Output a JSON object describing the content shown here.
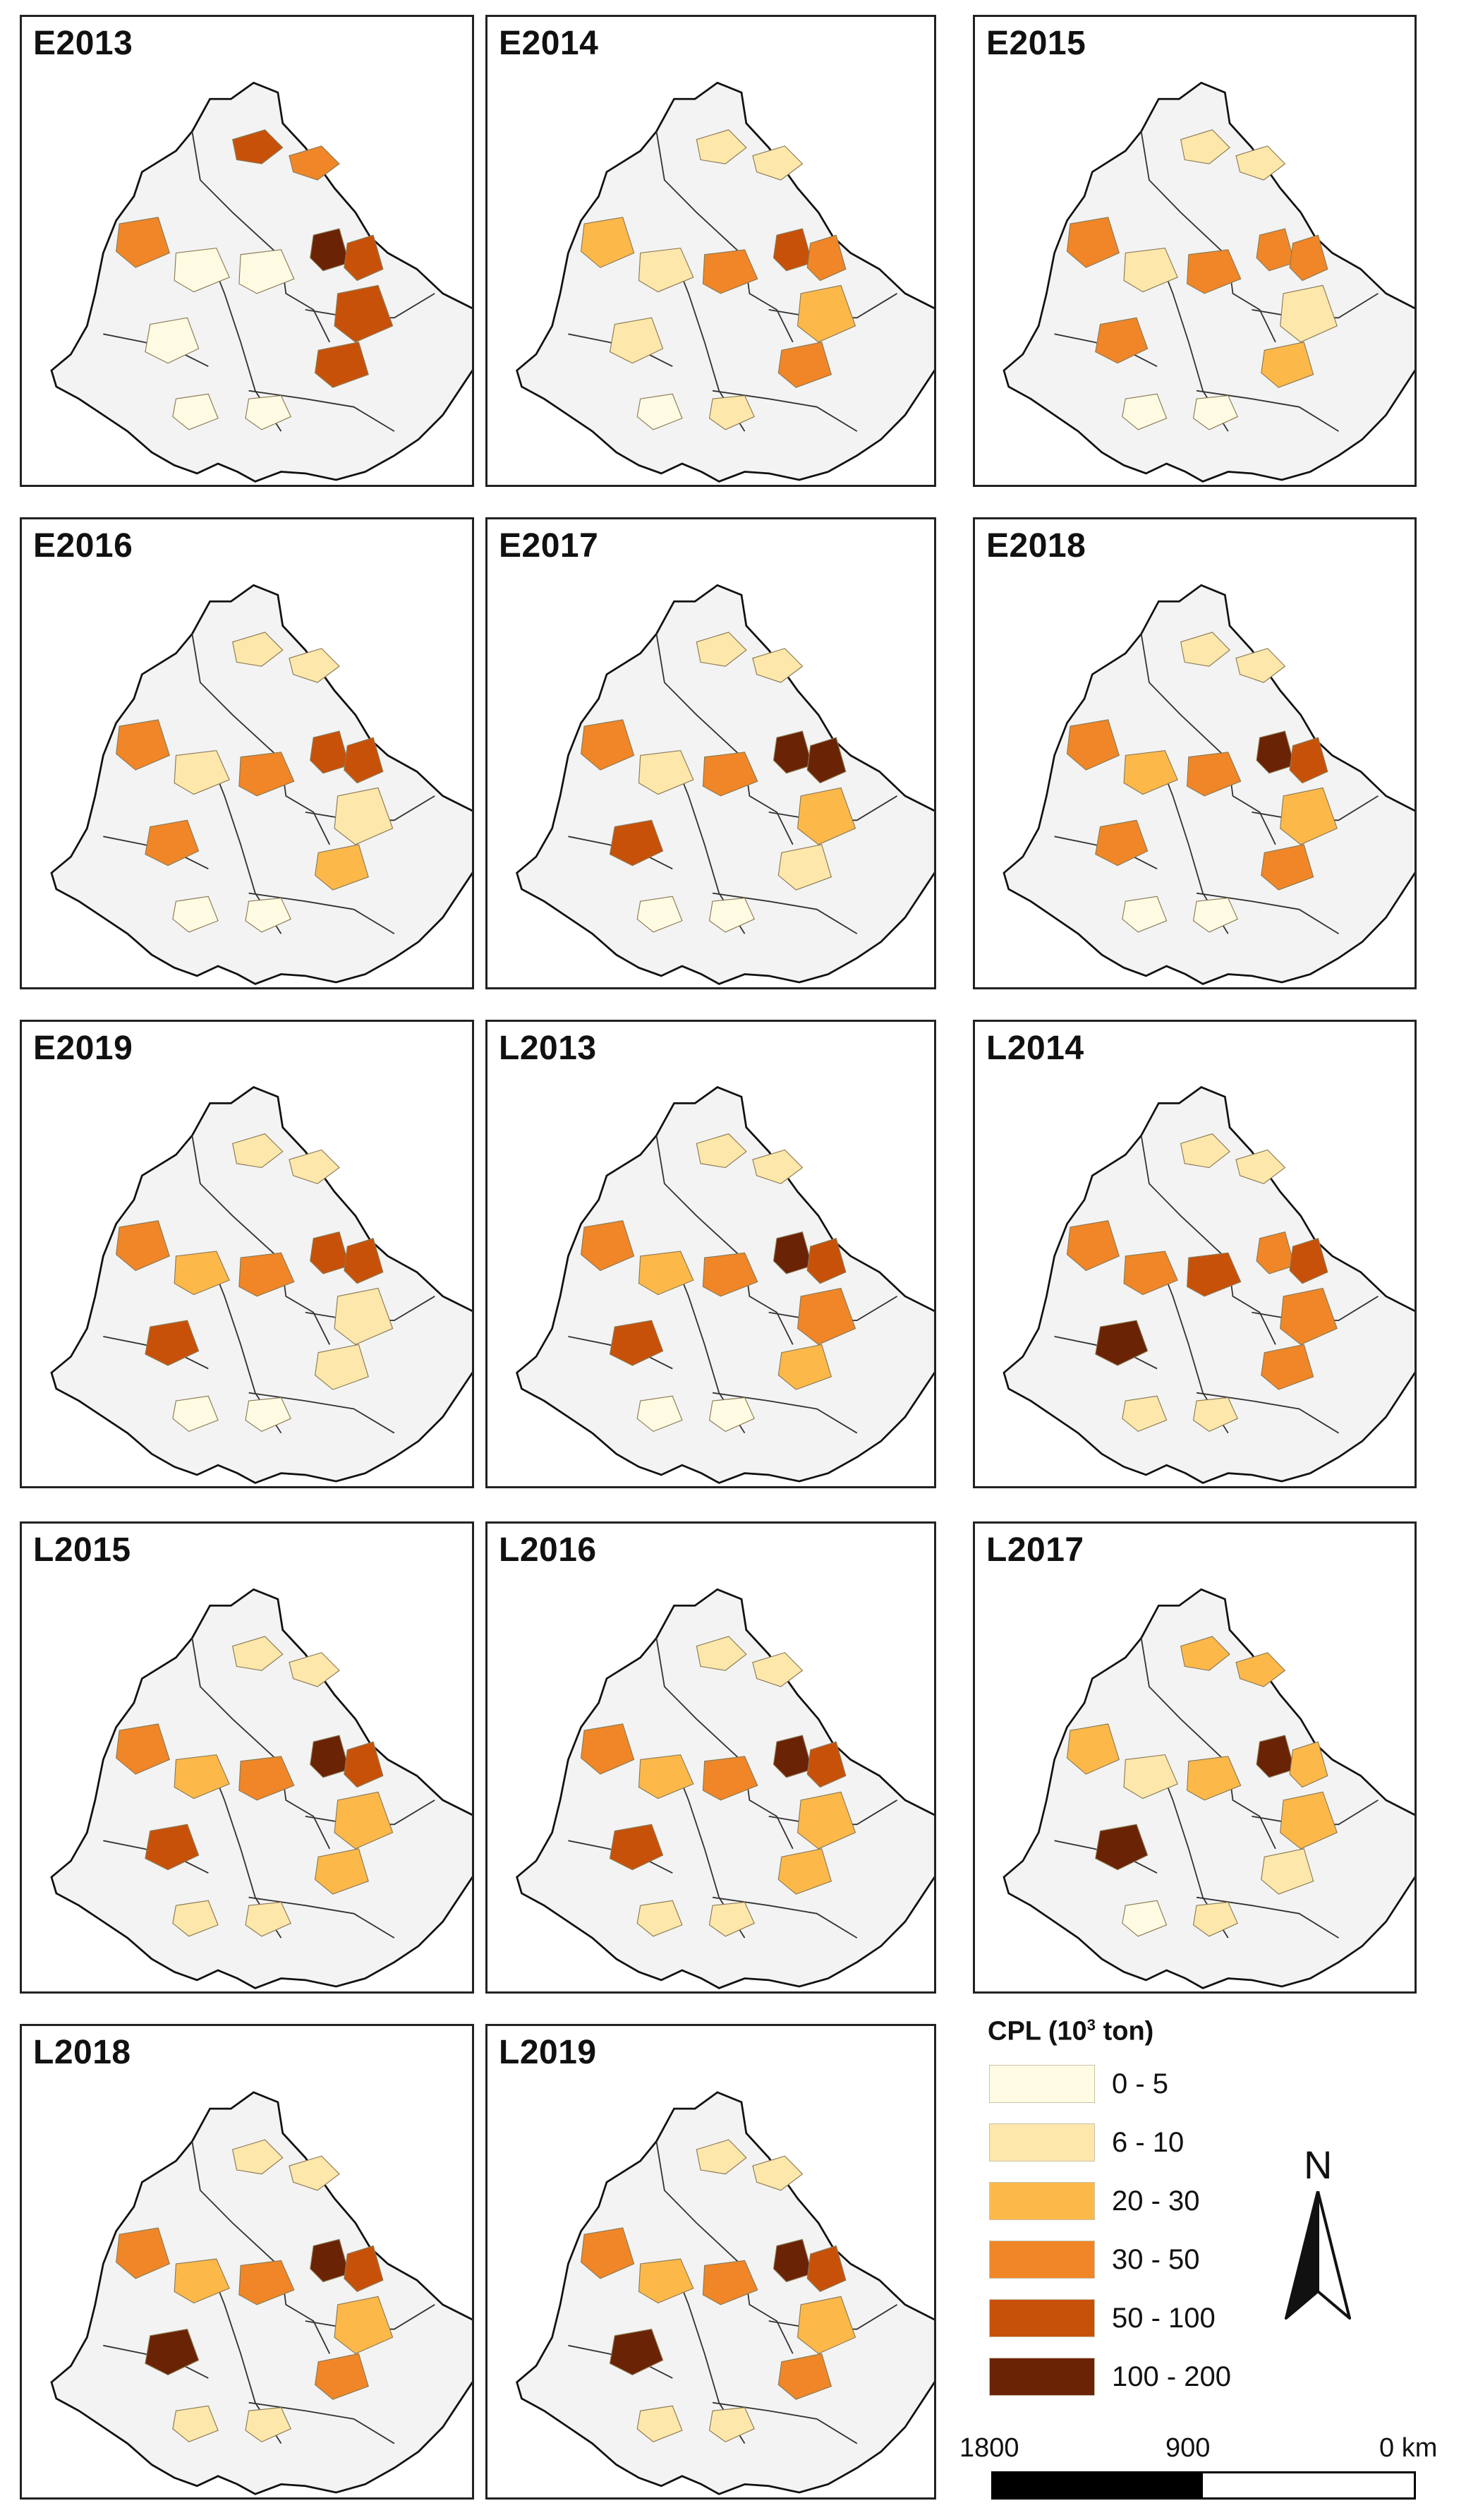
{
  "panels": [
    {
      "id": "E2013",
      "label": "E2013",
      "idx": [
        4,
        3,
        3,
        0,
        0,
        0,
        5,
        4,
        4,
        4,
        0,
        0
      ]
    },
    {
      "id": "E2014",
      "label": "E2014",
      "idx": [
        1,
        1,
        2,
        1,
        1,
        3,
        4,
        3,
        2,
        3,
        1,
        0
      ]
    },
    {
      "id": "E2015",
      "label": "E2015",
      "idx": [
        1,
        1,
        3,
        3,
        1,
        3,
        3,
        3,
        1,
        2,
        0,
        0
      ]
    },
    {
      "id": "E2016",
      "label": "E2016",
      "idx": [
        1,
        1,
        3,
        3,
        1,
        3,
        4,
        4,
        1,
        2,
        0,
        0
      ]
    },
    {
      "id": "E2017",
      "label": "E2017",
      "idx": [
        1,
        1,
        3,
        4,
        1,
        3,
        5,
        5,
        2,
        1,
        0,
        0
      ]
    },
    {
      "id": "E2018",
      "label": "E2018",
      "idx": [
        1,
        1,
        3,
        3,
        2,
        3,
        5,
        4,
        2,
        3,
        0,
        0
      ]
    },
    {
      "id": "E2019",
      "label": "E2019",
      "idx": [
        1,
        1,
        3,
        4,
        2,
        3,
        4,
        4,
        1,
        1,
        0,
        0
      ]
    },
    {
      "id": "L2013",
      "label": "L2013",
      "idx": [
        1,
        1,
        3,
        4,
        2,
        3,
        5,
        4,
        3,
        2,
        0,
        0
      ]
    },
    {
      "id": "L2014",
      "label": "L2014",
      "idx": [
        1,
        1,
        3,
        5,
        3,
        4,
        3,
        4,
        3,
        3,
        1,
        1
      ]
    },
    {
      "id": "L2015",
      "label": "L2015",
      "idx": [
        1,
        1,
        3,
        4,
        2,
        3,
        5,
        4,
        2,
        2,
        1,
        1
      ]
    },
    {
      "id": "L2016",
      "label": "L2016",
      "idx": [
        1,
        1,
        3,
        4,
        2,
        3,
        5,
        4,
        2,
        2,
        1,
        1
      ]
    },
    {
      "id": "L2017",
      "label": "L2017",
      "idx": [
        2,
        2,
        2,
        5,
        1,
        2,
        5,
        2,
        2,
        1,
        1,
        0
      ]
    },
    {
      "id": "L2018",
      "label": "L2018",
      "idx": [
        1,
        1,
        3,
        5,
        2,
        3,
        5,
        4,
        2,
        3,
        1,
        1
      ]
    },
    {
      "id": "L2019",
      "label": "L2019",
      "idx": [
        1,
        1,
        3,
        5,
        2,
        3,
        5,
        4,
        2,
        3,
        1,
        1
      ]
    }
  ],
  "legend": {
    "title_main": "CPL  (10",
    "title_sup": "3",
    "title_unit": " ton)",
    "items": [
      {
        "label": "0 - 5",
        "color": "#fffbe3"
      },
      {
        "label": "6 - 10",
        "color": "#fde7aa"
      },
      {
        "label": "20 - 30",
        "color": "#fdb84a"
      },
      {
        "label": "30 - 50",
        "color": "#f08628"
      },
      {
        "label": "50 - 100",
        "color": "#c8510a"
      },
      {
        "label": "100 - 200",
        "color": "#6b2305"
      }
    ]
  },
  "north_arrow": {
    "label": "N"
  },
  "scale_bar": {
    "labels": [
      "1800",
      "900",
      "0 km"
    ]
  }
}
